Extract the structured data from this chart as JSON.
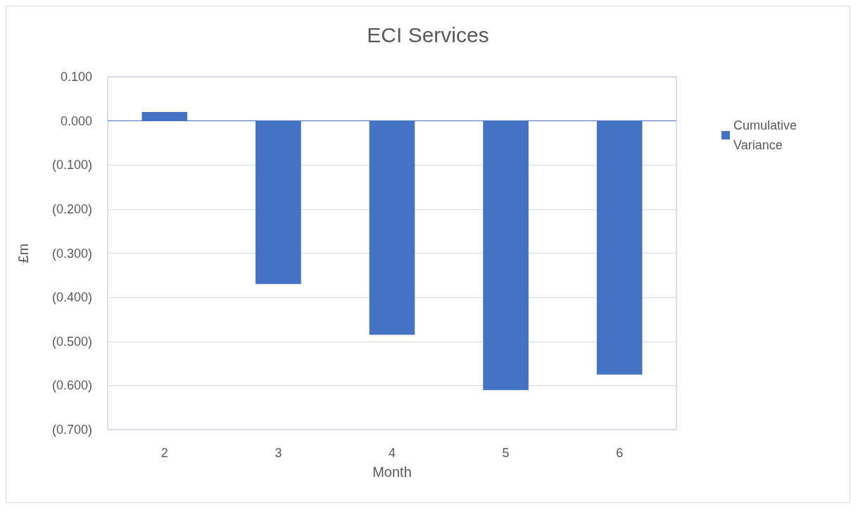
{
  "chart_data": {
    "type": "bar",
    "title": "ECI Services",
    "xlabel": "Month",
    "ylabel": "£m",
    "categories": [
      "2",
      "3",
      "4",
      "5",
      "6"
    ],
    "series": [
      {
        "name": "Cumulative Variance",
        "color": "#4472c4",
        "values": [
          0.02,
          -0.37,
          -0.485,
          -0.61,
          -0.575
        ]
      }
    ],
    "ylim": [
      -0.7,
      0.1
    ],
    "yticks": [
      {
        "value": 0.1,
        "label": "0.100"
      },
      {
        "value": 0,
        "label": "0.000"
      },
      {
        "value": -0.1,
        "label": "(0.100)"
      },
      {
        "value": -0.2,
        "label": "(0.200)"
      },
      {
        "value": -0.3,
        "label": "(0.300)"
      },
      {
        "value": -0.4,
        "label": "(0.400)"
      },
      {
        "value": -0.5,
        "label": "(0.500)"
      },
      {
        "value": -0.6,
        "label": "(0.600)"
      },
      {
        "value": -0.7,
        "label": "(0.700)"
      }
    ],
    "ref_lines": [
      {
        "axis": "y",
        "value": 0,
        "color": "#4472c4"
      }
    ],
    "grid": "y",
    "legend": "right"
  }
}
